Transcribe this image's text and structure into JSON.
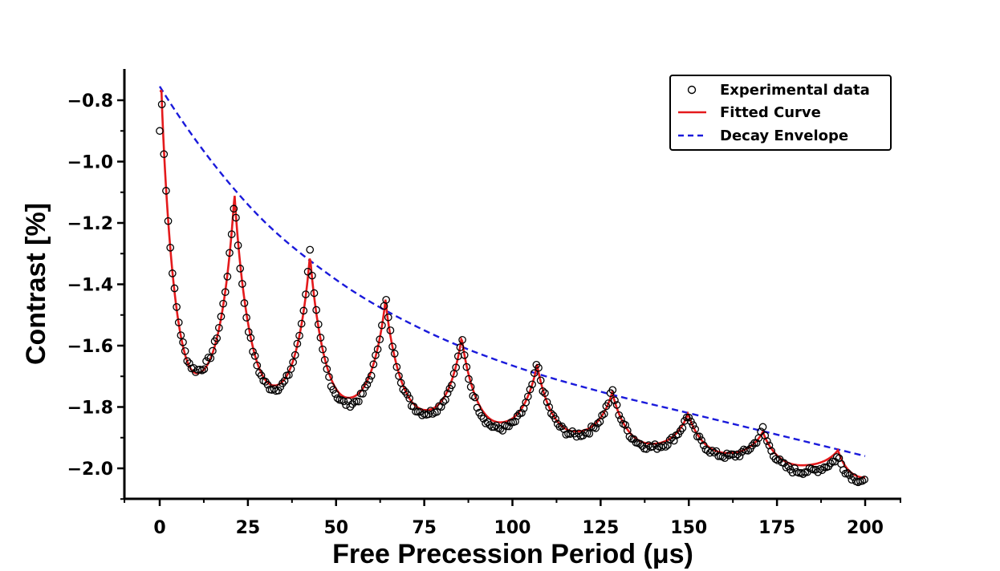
{
  "chart_data": {
    "type": "line",
    "title": "",
    "xlabel": "Free Precession Period (μs)",
    "ylabel": "Contrast [%]",
    "xlim": [
      -10,
      210
    ],
    "ylim": [
      -2.1,
      -0.7
    ],
    "x_ticks": [
      0,
      25,
      50,
      75,
      100,
      125,
      150,
      175,
      200
    ],
    "x_tick_labels": [
      "0",
      "25",
      "50",
      "75",
      "100",
      "125",
      "150",
      "175",
      "200"
    ],
    "y_ticks": [
      -2.0,
      -1.8,
      -1.6,
      -1.4,
      -1.2,
      -1.0,
      -0.8
    ],
    "y_tick_labels": [
      "−2.0",
      "−1.8",
      "−1.6",
      "−1.4",
      "−1.2",
      "−1.0",
      "−0.8"
    ],
    "grid": false,
    "legend_position": "top-right",
    "series": [
      {
        "name": "Experimental data",
        "style": "open-circle markers",
        "color": "#000000",
        "x_range": [
          0,
          200
        ],
        "x_step": 0.6,
        "peaks": [
          {
            "x": 0.5,
            "y": -0.78
          },
          {
            "x": 21.2,
            "y": -1.11
          },
          {
            "x": 42.6,
            "y": -1.28
          },
          {
            "x": 64.0,
            "y": -1.43
          },
          {
            "x": 85.6,
            "y": -1.57
          },
          {
            "x": 107.0,
            "y": -1.65
          },
          {
            "x": 128.3,
            "y": -1.74
          },
          {
            "x": 149.8,
            "y": -1.82
          },
          {
            "x": 171.0,
            "y": -1.87
          },
          {
            "x": 192.3,
            "y": -1.96
          }
        ],
        "troughs": [
          {
            "x": 10.5,
            "y": -1.68
          },
          {
            "x": 32.5,
            "y": -1.74
          },
          {
            "x": 53.5,
            "y": -1.79
          },
          {
            "x": 75.5,
            "y": -1.82
          },
          {
            "x": 96.5,
            "y": -1.87
          },
          {
            "x": 118.0,
            "y": -1.89
          },
          {
            "x": 139.5,
            "y": -1.93
          },
          {
            "x": 161.0,
            "y": -1.96
          },
          {
            "x": 182.0,
            "y": -2.01
          },
          {
            "x": 200.0,
            "y": -2.04
          }
        ]
      },
      {
        "name": "Fitted Curve",
        "style": "solid line",
        "color": "#e41a1c",
        "x_range": [
          0,
          200
        ],
        "peaks": [
          {
            "x": 0.5,
            "y": -0.77
          },
          {
            "x": 21.2,
            "y": -1.1
          },
          {
            "x": 42.6,
            "y": -1.3
          },
          {
            "x": 64.0,
            "y": -1.45
          },
          {
            "x": 85.6,
            "y": -1.57
          },
          {
            "x": 107.0,
            "y": -1.66
          },
          {
            "x": 128.3,
            "y": -1.75
          },
          {
            "x": 149.8,
            "y": -1.82
          },
          {
            "x": 171.0,
            "y": -1.88
          },
          {
            "x": 192.3,
            "y": -1.94
          }
        ],
        "troughs": [
          {
            "x": 10.5,
            "y": -1.69
          },
          {
            "x": 32.5,
            "y": -1.73
          },
          {
            "x": 53.5,
            "y": -1.77
          },
          {
            "x": 75.5,
            "y": -1.81
          },
          {
            "x": 96.5,
            "y": -1.85
          },
          {
            "x": 118.0,
            "y": -1.88
          },
          {
            "x": 139.5,
            "y": -1.92
          },
          {
            "x": 161.0,
            "y": -1.95
          },
          {
            "x": 182.0,
            "y": -1.99
          },
          {
            "x": 200.0,
            "y": -2.03
          }
        ]
      },
      {
        "name": "Decay Envelope",
        "style": "dashed line",
        "color": "#1a1adb",
        "x": [
          0,
          25,
          50,
          75,
          100,
          125,
          150,
          175,
          200
        ],
        "y": [
          -0.755,
          -1.14,
          -1.385,
          -1.55,
          -1.665,
          -1.75,
          -1.82,
          -1.89,
          -1.96
        ]
      }
    ]
  }
}
